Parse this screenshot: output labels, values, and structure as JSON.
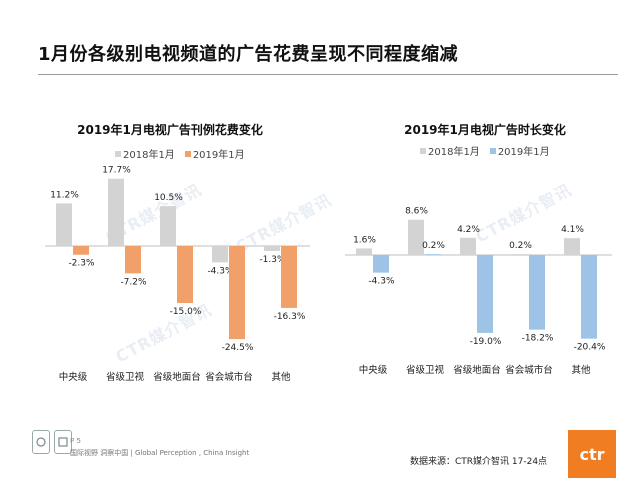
{
  "page": {
    "title": "1月份各级别电视频道的广告花费呈现不同程度缩减",
    "watermark": "CTR媒介智讯",
    "page_number": "P 5",
    "slogan": "国际视野 洞察中国 | Global Perception , China Insight",
    "source": "数据来源：CTR媒介智讯     17-24点",
    "logo_text": "ctr"
  },
  "colors": {
    "y2018": "#d3d3d3",
    "y2019_left": "#f2a06a",
    "y2019_right": "#9dc3e6",
    "logo": "#f07d22"
  },
  "chart_data": [
    {
      "type": "bar",
      "title": "2019年1月电视广告刊例花费变化",
      "categories": [
        "中央级",
        "省级卫视",
        "省级地面台",
        "省会城市台",
        "其他"
      ],
      "series": [
        {
          "name": "2018年1月",
          "values": [
            11.2,
            17.7,
            10.5,
            -4.3,
            -1.3
          ],
          "labels": [
            "11.2%",
            "17.7%",
            "10.5%",
            "-4.3%",
            "-1.3%"
          ]
        },
        {
          "name": "2019年1月",
          "values": [
            -2.3,
            -7.2,
            -15.0,
            -24.5,
            -16.3
          ],
          "labels": [
            "-2.3%",
            "-7.2%",
            "-15.0%",
            "-24.5%",
            "-16.3%"
          ]
        }
      ],
      "legend_position": "top",
      "grid": false
    },
    {
      "type": "bar",
      "title": "2019年1月电视广告时长变化",
      "categories": [
        "中央级",
        "省级卫视",
        "省级地面台",
        "省会城市台",
        "其他"
      ],
      "series": [
        {
          "name": "2018年1月",
          "values": [
            1.6,
            8.6,
            4.2,
            0.2,
            4.1
          ],
          "labels": [
            "1.6%",
            "8.6%",
            "4.2%",
            "0.2%",
            "4.1%"
          ]
        },
        {
          "name": "2019年1月",
          "values": [
            -4.3,
            0.2,
            -19.0,
            -18.2,
            -20.4
          ],
          "labels": [
            "-4.3%",
            "0.2%",
            "-19.0%",
            "-18.2%",
            "-20.4%"
          ]
        }
      ],
      "legend_position": "top",
      "grid": false
    }
  ]
}
